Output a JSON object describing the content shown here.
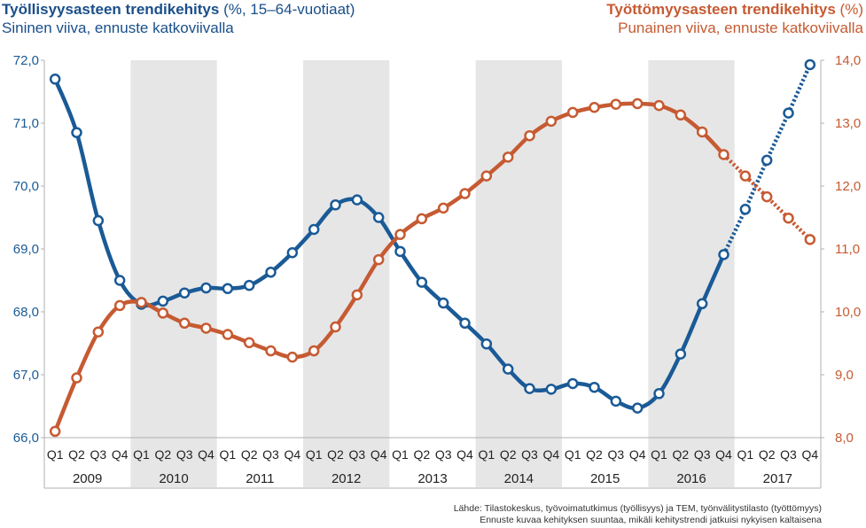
{
  "header": {
    "left_title_bold": "Työllisyysasteen trendikehitys",
    "left_title_rest": " (%, 15–64-vuotiaat)",
    "left_subtitle": "Sininen viiva, ennuste katkoviivalla",
    "right_title_bold": "Työttömyysasteen trendikehitys",
    "right_title_rest": " (%)",
    "right_subtitle": "Punainen viiva, ennuste katkoviivalla"
  },
  "footnote": {
    "line1": "Lähde: Tilastokeskus, työvoimatutkimus (työllisyys) ja TEM, työnvälitystilasto (työttömyys)",
    "line2": "Ennuste kuvaa kehityksen suuntaa, mikäli kehitystrendi jatkuisi nykyisen kaltaisena"
  },
  "colors": {
    "employment": "#1a5a96",
    "unemployment": "#c65a32",
    "band": "#e6e6e6"
  },
  "chart_data": {
    "type": "line",
    "quarters": [
      "Q1",
      "Q2",
      "Q3",
      "Q4"
    ],
    "years": [
      "2009",
      "2010",
      "2011",
      "2012",
      "2013",
      "2014",
      "2015",
      "2016",
      "2017"
    ],
    "x": [
      "2009 Q1",
      "2009 Q2",
      "2009 Q3",
      "2009 Q4",
      "2010 Q1",
      "2010 Q2",
      "2010 Q3",
      "2010 Q4",
      "2011 Q1",
      "2011 Q2",
      "2011 Q3",
      "2011 Q4",
      "2012 Q1",
      "2012 Q2",
      "2012 Q3",
      "2012 Q4",
      "2013 Q1",
      "2013 Q2",
      "2013 Q3",
      "2013 Q4",
      "2014 Q1",
      "2014 Q2",
      "2014 Q3",
      "2014 Q4",
      "2015 Q1",
      "2015 Q2",
      "2015 Q3",
      "2015 Q4",
      "2016 Q1",
      "2016 Q2",
      "2016 Q3",
      "2016 Q4",
      "2017 Q1",
      "2017 Q2",
      "2017 Q3",
      "2017 Q4"
    ],
    "left_axis": {
      "ylim": [
        66.0,
        72.0
      ],
      "ticks": [
        "66,0",
        "67,0",
        "68,0",
        "69,0",
        "70,0",
        "71,0",
        "72,0"
      ]
    },
    "right_axis": {
      "ylim": [
        8.0,
        14.0
      ],
      "ticks": [
        "8,0",
        "9,0",
        "10,0",
        "11,0",
        "12,0",
        "13,0",
        "14,0"
      ]
    },
    "grid": false,
    "series": [
      {
        "axis": "left",
        "color": "#1a5a96",
        "forecast_from_index": 32,
        "values": [
          71.7,
          70.85,
          69.45,
          68.5,
          68.12,
          68.17,
          68.3,
          68.38,
          68.37,
          68.42,
          68.63,
          68.94,
          69.31,
          69.7,
          69.78,
          69.5,
          68.96,
          68.47,
          68.14,
          67.82,
          67.49,
          67.09,
          66.78,
          66.77,
          66.86,
          66.8,
          66.58,
          66.47,
          66.7,
          67.33,
          68.13,
          68.91,
          69.63,
          70.41,
          71.16,
          71.93
        ]
      },
      {
        "axis": "right",
        "color": "#c65a32",
        "forecast_from_index": 32,
        "values": [
          8.1,
          8.95,
          9.68,
          10.1,
          10.15,
          9.98,
          9.82,
          9.74,
          9.64,
          9.51,
          9.38,
          9.28,
          9.38,
          9.76,
          10.27,
          10.83,
          11.23,
          11.48,
          11.65,
          11.88,
          12.16,
          12.46,
          12.8,
          13.03,
          13.17,
          13.25,
          13.3,
          13.31,
          13.28,
          13.13,
          12.86,
          12.5,
          12.16,
          11.83,
          11.49,
          11.15
        ]
      }
    ]
  }
}
